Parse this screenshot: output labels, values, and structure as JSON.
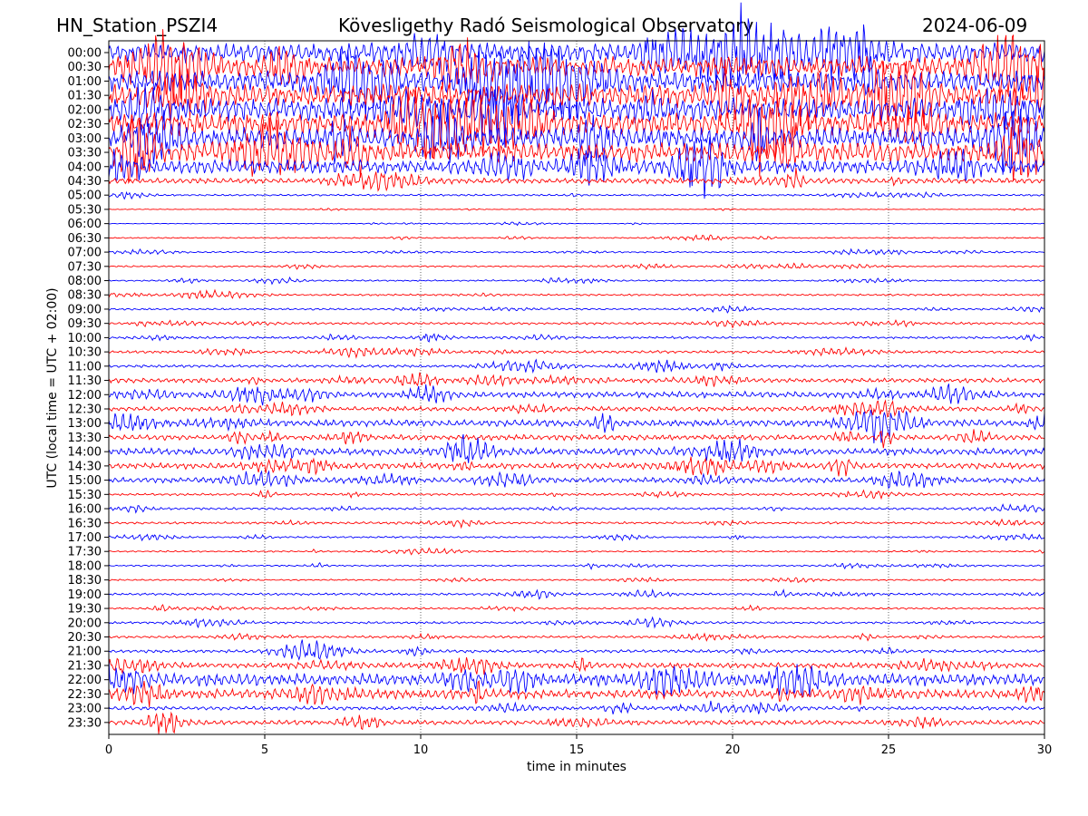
{
  "header": {
    "station": "HN_Station_PSZI4",
    "observatory": "Kövesligethy Radó Seismological Observatory",
    "date": "2024-06-09"
  },
  "chart_data": {
    "type": "line",
    "title": "Kövesligethy Radó Seismological Observatory",
    "xlabel": "time in minutes",
    "ylabel": "UTC (local time = UTC + 02:00)",
    "xlim": [
      0,
      30
    ],
    "xticks": [
      "0",
      "5",
      "10",
      "15",
      "20",
      "25",
      "30"
    ],
    "grid": "vertical dotted at 5-minute intervals",
    "colors": [
      "#0000ff",
      "#ff0000"
    ],
    "rows": [
      {
        "label": "00:00",
        "amp": 1.3
      },
      {
        "label": "00:30",
        "amp": 1.3
      },
      {
        "label": "01:00",
        "amp": 1.4
      },
      {
        "label": "01:30",
        "amp": 1.5
      },
      {
        "label": "02:00",
        "amp": 1.5
      },
      {
        "label": "02:30",
        "amp": 1.5
      },
      {
        "label": "03:00",
        "amp": 1.4
      },
      {
        "label": "03:30",
        "amp": 1.3
      },
      {
        "label": "04:00",
        "amp": 0.9
      },
      {
        "label": "04:30",
        "amp": 0.35
      },
      {
        "label": "05:00",
        "amp": 0.12
      },
      {
        "label": "05:30",
        "amp": 0.05
      },
      {
        "label": "06:00",
        "amp": 0.05
      },
      {
        "label": "06:30",
        "amp": 0.08
      },
      {
        "label": "07:00",
        "amp": 0.1
      },
      {
        "label": "07:30",
        "amp": 0.1
      },
      {
        "label": "08:00",
        "amp": 0.1
      },
      {
        "label": "08:30",
        "amp": 0.12
      },
      {
        "label": "09:00",
        "amp": 0.12
      },
      {
        "label": "09:30",
        "amp": 0.15
      },
      {
        "label": "10:00",
        "amp": 0.15
      },
      {
        "label": "10:30",
        "amp": 0.18
      },
      {
        "label": "11:00",
        "amp": 0.18
      },
      {
        "label": "11:30",
        "amp": 0.3
      },
      {
        "label": "12:00",
        "amp": 0.4
      },
      {
        "label": "12:30",
        "amp": 0.3
      },
      {
        "label": "13:00",
        "amp": 0.45
      },
      {
        "label": "13:30",
        "amp": 0.35
      },
      {
        "label": "14:00",
        "amp": 0.45
      },
      {
        "label": "14:30",
        "amp": 0.4
      },
      {
        "label": "15:00",
        "amp": 0.35
      },
      {
        "label": "15:30",
        "amp": 0.15
      },
      {
        "label": "16:00",
        "amp": 0.15
      },
      {
        "label": "16:30",
        "amp": 0.15
      },
      {
        "label": "17:00",
        "amp": 0.12
      },
      {
        "label": "17:30",
        "amp": 0.1
      },
      {
        "label": "18:00",
        "amp": 0.1
      },
      {
        "label": "18:30",
        "amp": 0.1
      },
      {
        "label": "19:00",
        "amp": 0.15
      },
      {
        "label": "19:30",
        "amp": 0.12
      },
      {
        "label": "20:00",
        "amp": 0.15
      },
      {
        "label": "20:30",
        "amp": 0.15
      },
      {
        "label": "21:00",
        "amp": 0.2
      },
      {
        "label": "21:30",
        "amp": 0.35
      },
      {
        "label": "22:00",
        "amp": 0.8
      },
      {
        "label": "22:30",
        "amp": 0.6
      },
      {
        "label": "23:00",
        "amp": 0.25
      },
      {
        "label": "23:30",
        "amp": 0.3
      }
    ]
  }
}
